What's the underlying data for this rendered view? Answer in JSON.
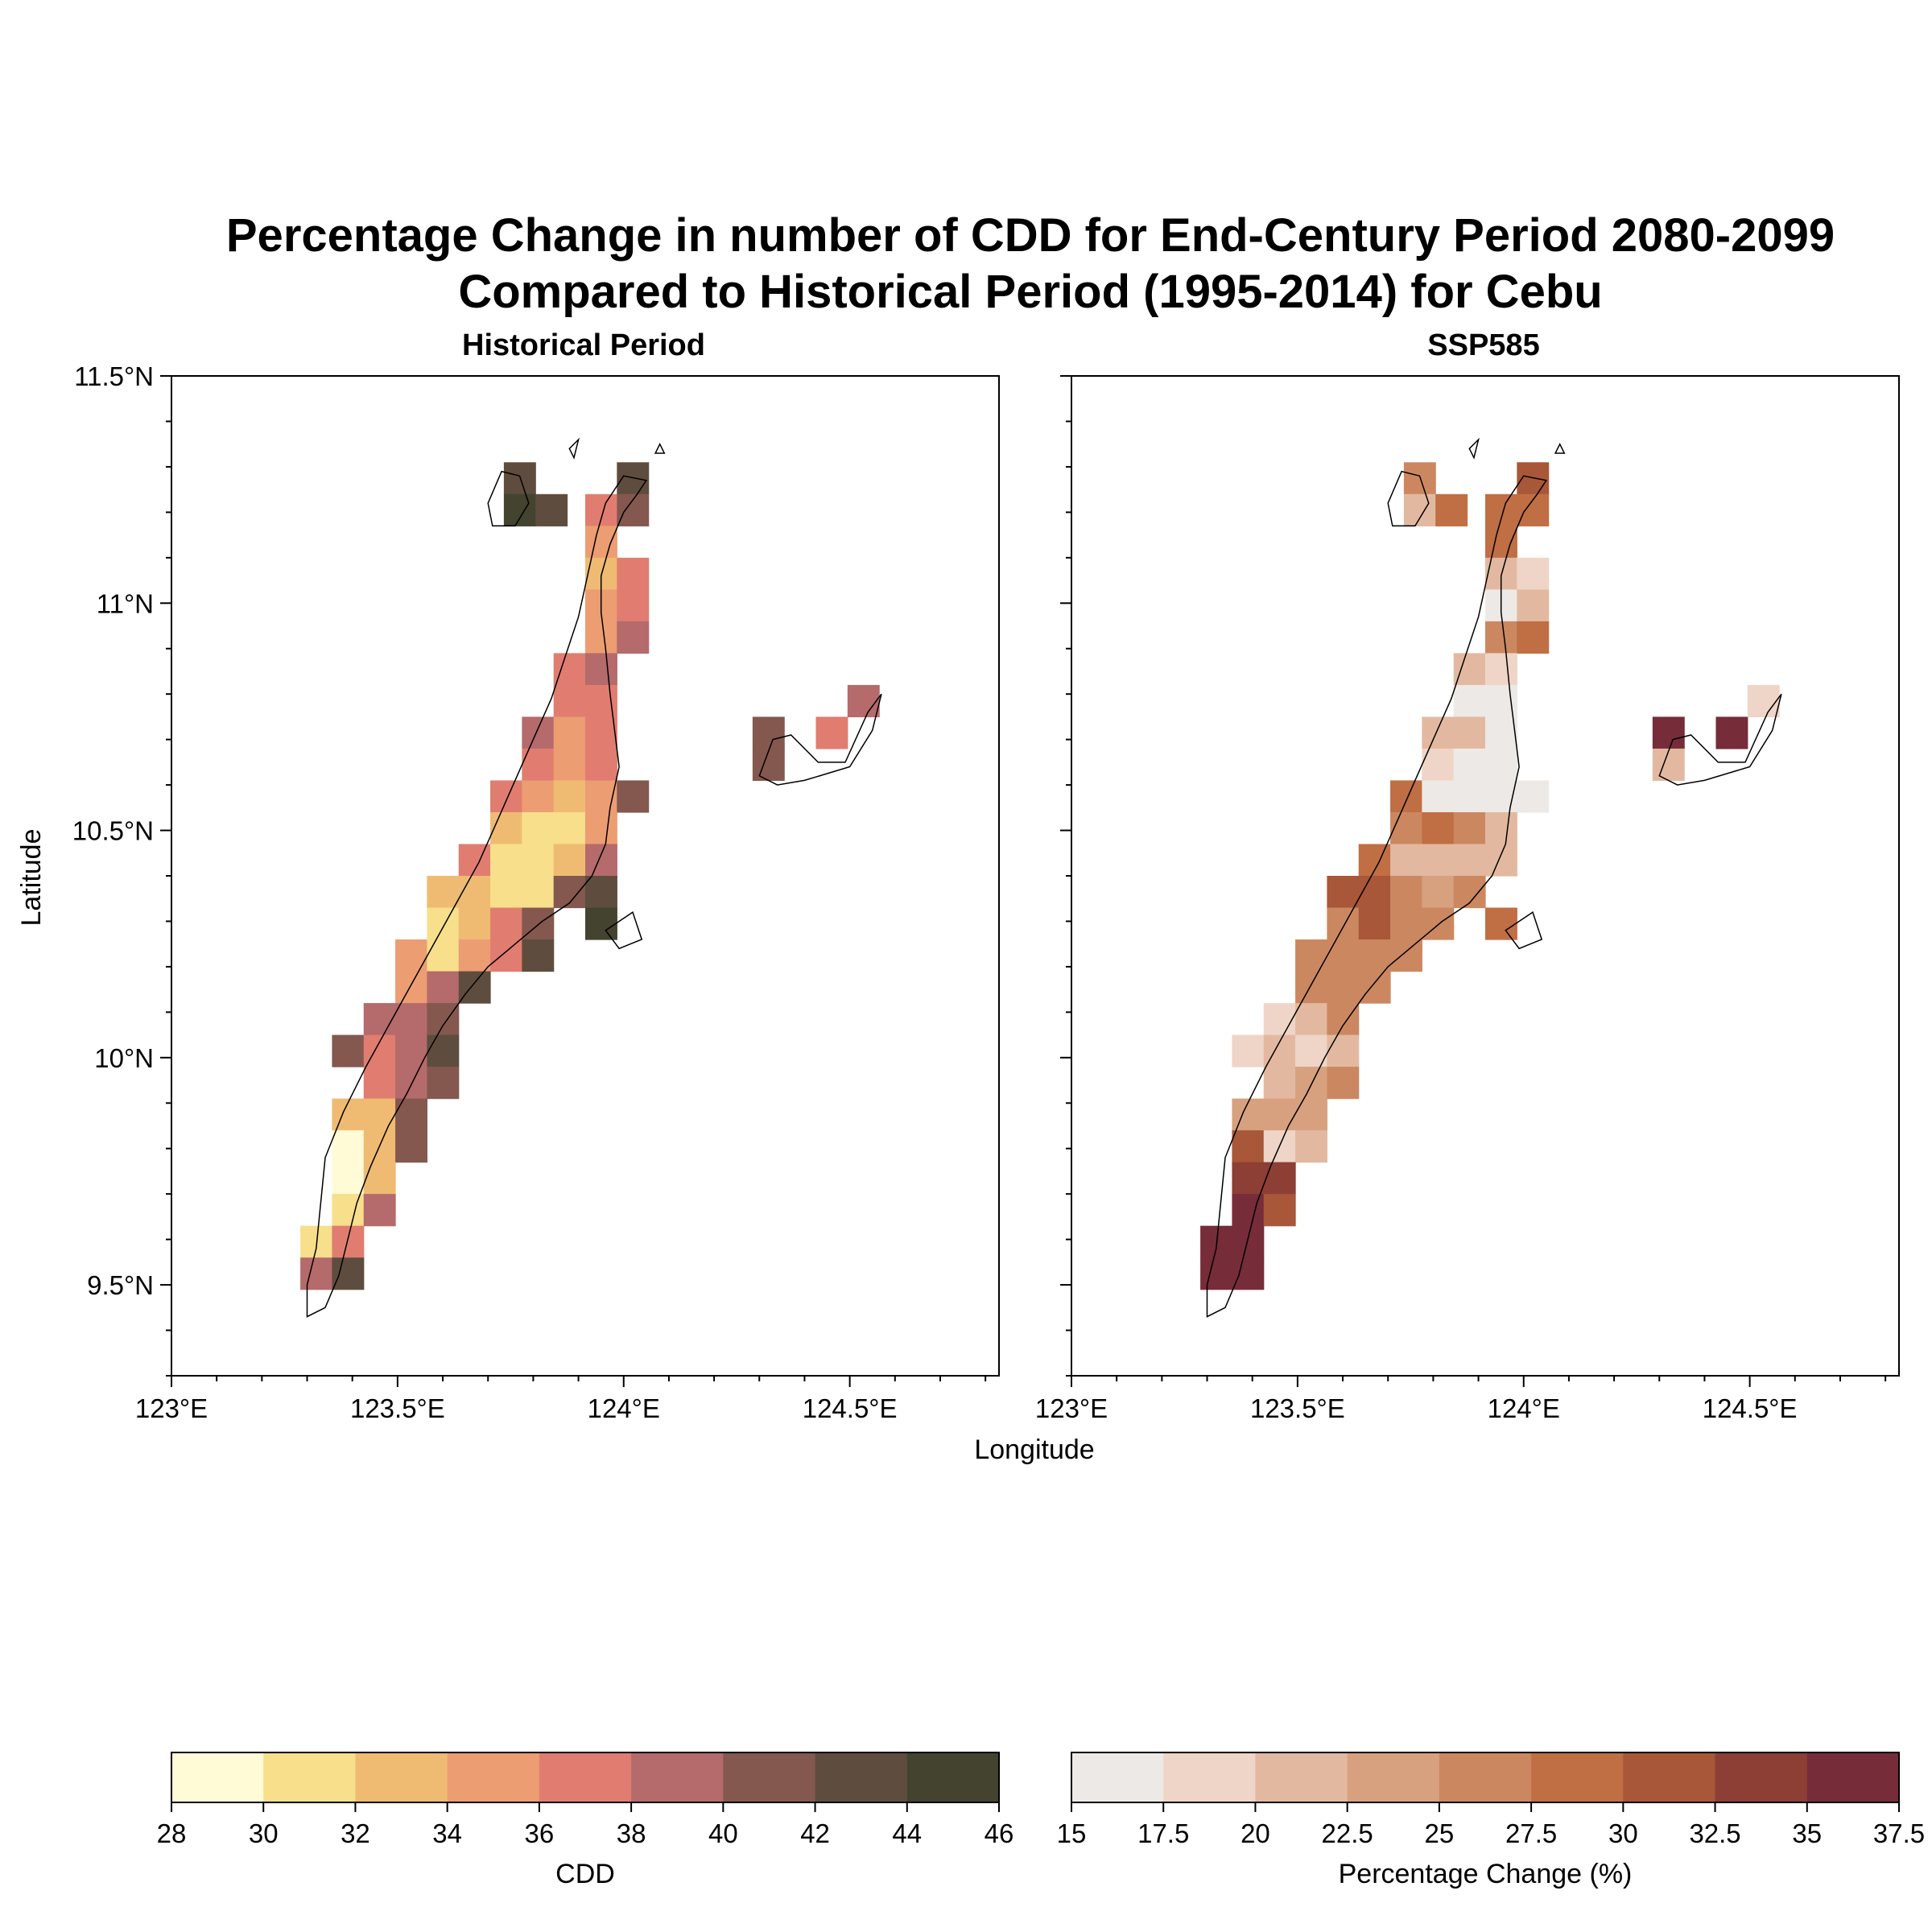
{
  "figure": {
    "title_line1": "Percentage Change in number of CDD for End-Century Period 2080-2099",
    "title_line2": "Compared to Historical Period (1995-2014) for Cebu"
  },
  "chart_data": [
    {
      "type": "heatmap",
      "title": "Historical Period",
      "xlabel": "Longitude",
      "ylabel": "Latitude",
      "xlim": [
        123.0,
        124.83
      ],
      "ylim": [
        9.3,
        11.5
      ],
      "x_ticks": [
        "123°E",
        "123.5°E",
        "124°E",
        "124.5°E"
      ],
      "x_tick_values": [
        123.0,
        123.5,
        124.0,
        124.5
      ],
      "y_ticks": [
        "9.5°N",
        "10°N",
        "10.5°N",
        "11°N",
        "11.5°N"
      ],
      "y_tick_values": [
        9.5,
        10.0,
        10.5,
        11.0,
        11.5
      ],
      "cell_size_deg": 0.07,
      "colorbar": {
        "label": "CDD",
        "tick_labels": [
          "28",
          "30",
          "32",
          "34",
          "36",
          "38",
          "40",
          "42",
          "44",
          "46"
        ],
        "colors": [
          "#fefbd6",
          "#f7df8b",
          "#efbb72",
          "#ec9d72",
          "#e07d70",
          "#b56a6b",
          "#84584f",
          "#5e4d3e",
          "#434330"
        ]
      },
      "cells": [
        [
          123.77,
          11.275,
          42
        ],
        [
          123.77,
          11.205,
          44
        ],
        [
          123.84,
          11.205,
          43
        ],
        [
          124.02,
          11.275,
          42
        ],
        [
          123.95,
          11.205,
          37
        ],
        [
          124.02,
          11.205,
          40
        ],
        [
          123.95,
          11.135,
          34
        ],
        [
          123.95,
          11.065,
          32
        ],
        [
          124.02,
          11.065,
          37
        ],
        [
          123.95,
          10.995,
          34
        ],
        [
          124.02,
          10.995,
          36
        ],
        [
          123.95,
          10.925,
          34
        ],
        [
          124.02,
          10.925,
          38
        ],
        [
          123.88,
          10.855,
          37
        ],
        [
          123.95,
          10.855,
          39
        ],
        [
          123.88,
          10.785,
          37
        ],
        [
          123.95,
          10.785,
          37
        ],
        [
          123.81,
          10.715,
          39
        ],
        [
          123.88,
          10.715,
          35
        ],
        [
          123.95,
          10.715,
          37
        ],
        [
          123.81,
          10.645,
          36
        ],
        [
          123.88,
          10.645,
          34
        ],
        [
          123.95,
          10.645,
          37
        ],
        [
          123.74,
          10.575,
          37
        ],
        [
          123.81,
          10.575,
          35
        ],
        [
          123.88,
          10.575,
          33
        ],
        [
          123.95,
          10.575,
          35
        ],
        [
          124.02,
          10.575,
          41
        ],
        [
          123.74,
          10.505,
          32
        ],
        [
          123.81,
          10.505,
          31
        ],
        [
          123.88,
          10.505,
          31
        ],
        [
          123.95,
          10.505,
          35
        ],
        [
          123.67,
          10.435,
          37
        ],
        [
          123.74,
          10.435,
          31
        ],
        [
          123.81,
          10.435,
          31
        ],
        [
          123.88,
          10.435,
          33
        ],
        [
          123.95,
          10.435,
          39
        ],
        [
          123.6,
          10.365,
          33
        ],
        [
          123.67,
          10.365,
          33
        ],
        [
          123.74,
          10.365,
          31
        ],
        [
          123.81,
          10.365,
          31
        ],
        [
          123.88,
          10.365,
          41
        ],
        [
          123.95,
          10.365,
          42
        ],
        [
          123.6,
          10.295,
          31
        ],
        [
          123.67,
          10.295,
          33
        ],
        [
          123.74,
          10.295,
          36
        ],
        [
          123.81,
          10.295,
          40
        ],
        [
          123.95,
          10.295,
          44
        ],
        [
          123.53,
          10.225,
          35
        ],
        [
          123.6,
          10.225,
          31
        ],
        [
          123.67,
          10.225,
          34
        ],
        [
          123.74,
          10.225,
          37
        ],
        [
          123.81,
          10.225,
          42
        ],
        [
          123.53,
          10.155,
          35
        ],
        [
          123.6,
          10.155,
          38
        ],
        [
          123.67,
          10.155,
          42
        ],
        [
          123.46,
          10.085,
          39
        ],
        [
          123.53,
          10.085,
          39
        ],
        [
          123.6,
          10.085,
          40
        ],
        [
          123.39,
          10.015,
          41
        ],
        [
          123.46,
          10.015,
          37
        ],
        [
          123.53,
          10.015,
          39
        ],
        [
          123.6,
          10.015,
          43
        ],
        [
          123.46,
          9.945,
          36
        ],
        [
          123.53,
          9.945,
          39
        ],
        [
          123.6,
          9.945,
          40
        ],
        [
          123.39,
          9.875,
          33
        ],
        [
          123.46,
          9.875,
          33
        ],
        [
          123.53,
          9.875,
          40
        ],
        [
          123.39,
          9.805,
          29
        ],
        [
          123.46,
          9.805,
          33
        ],
        [
          123.53,
          9.805,
          40
        ],
        [
          123.39,
          9.735,
          29
        ],
        [
          123.46,
          9.735,
          33
        ],
        [
          123.39,
          9.665,
          31
        ],
        [
          123.46,
          9.665,
          38
        ],
        [
          123.32,
          9.595,
          30
        ],
        [
          123.39,
          9.595,
          36
        ],
        [
          123.32,
          9.525,
          39
        ],
        [
          123.39,
          9.525,
          43
        ],
        [
          124.32,
          10.715,
          40
        ],
        [
          124.32,
          10.645,
          40
        ],
        [
          124.46,
          10.715,
          37
        ],
        [
          124.53,
          10.785,
          38
        ]
      ]
    },
    {
      "type": "heatmap",
      "title": "SSP585",
      "xlabel": "Longitude",
      "xlim": [
        123.0,
        124.83
      ],
      "ylim": [
        9.3,
        11.5
      ],
      "x_ticks": [
        "123°E",
        "123.5°E",
        "124°E",
        "124.5°E"
      ],
      "x_tick_values": [
        123.0,
        123.5,
        124.0,
        124.5
      ],
      "cell_size_deg": 0.07,
      "colorbar": {
        "label": "Percentage Change (%)",
        "tick_labels": [
          "15",
          "17.5",
          "20",
          "22.5",
          "25",
          "27.5",
          "30",
          "32.5",
          "35",
          "37.5"
        ],
        "colors": [
          "#ede9e6",
          "#eed5c7",
          "#e2b9a0",
          "#d7a17f",
          "#cb8860",
          "#c06e44",
          "#a85738",
          "#8d3f35",
          "#772c39"
        ]
      },
      "cells": [
        [
          123.77,
          11.275,
          25
        ],
        [
          123.77,
          11.205,
          22
        ],
        [
          123.84,
          11.205,
          28
        ],
        [
          124.02,
          11.275,
          30
        ],
        [
          123.95,
          11.205,
          28
        ],
        [
          124.02,
          11.205,
          28
        ],
        [
          123.95,
          11.135,
          28
        ],
        [
          123.95,
          11.065,
          21
        ],
        [
          124.02,
          11.065,
          18
        ],
        [
          123.95,
          10.995,
          16
        ],
        [
          124.02,
          10.995,
          21
        ],
        [
          123.95,
          10.925,
          27
        ],
        [
          124.02,
          10.925,
          28
        ],
        [
          123.88,
          10.855,
          21
        ],
        [
          123.95,
          10.855,
          19
        ],
        [
          123.88,
          10.785,
          17
        ],
        [
          123.95,
          10.785,
          16
        ],
        [
          123.81,
          10.715,
          22
        ],
        [
          123.88,
          10.715,
          21
        ],
        [
          123.95,
          10.715,
          16
        ],
        [
          123.81,
          10.645,
          19
        ],
        [
          123.88,
          10.645,
          16
        ],
        [
          123.95,
          10.645,
          16
        ],
        [
          123.74,
          10.575,
          28
        ],
        [
          123.81,
          10.575,
          16
        ],
        [
          123.88,
          10.575,
          16
        ],
        [
          123.95,
          10.575,
          16
        ],
        [
          124.02,
          10.575,
          16
        ],
        [
          123.74,
          10.505,
          26
        ],
        [
          123.81,
          10.505,
          28
        ],
        [
          123.88,
          10.505,
          25
        ],
        [
          123.95,
          10.505,
          21
        ],
        [
          123.67,
          10.435,
          28
        ],
        [
          123.74,
          10.435,
          22
        ],
        [
          123.81,
          10.435,
          21
        ],
        [
          123.88,
          10.435,
          21
        ],
        [
          123.95,
          10.435,
          21
        ],
        [
          123.6,
          10.365,
          30
        ],
        [
          123.67,
          10.365,
          30
        ],
        [
          123.74,
          10.365,
          26
        ],
        [
          123.81,
          10.365,
          24
        ],
        [
          123.88,
          10.365,
          27
        ],
        [
          123.6,
          10.295,
          26
        ],
        [
          123.67,
          10.295,
          32
        ],
        [
          123.74,
          10.295,
          27
        ],
        [
          123.81,
          10.295,
          27
        ],
        [
          123.95,
          10.295,
          28
        ],
        [
          123.53,
          10.225,
          25
        ],
        [
          123.6,
          10.225,
          26
        ],
        [
          123.67,
          10.225,
          26
        ],
        [
          123.74,
          10.225,
          26
        ],
        [
          123.53,
          10.155,
          26
        ],
        [
          123.6,
          10.155,
          26
        ],
        [
          123.67,
          10.155,
          26
        ],
        [
          123.46,
          10.085,
          19
        ],
        [
          123.53,
          10.085,
          21
        ],
        [
          123.6,
          10.085,
          26
        ],
        [
          123.39,
          10.015,
          19
        ],
        [
          123.46,
          10.015,
          21
        ],
        [
          123.53,
          10.015,
          19
        ],
        [
          123.6,
          10.015,
          21
        ],
        [
          123.46,
          9.945,
          22
        ],
        [
          123.53,
          9.945,
          24
        ],
        [
          123.6,
          9.945,
          26
        ],
        [
          123.39,
          9.875,
          24
        ],
        [
          123.46,
          9.875,
          23
        ],
        [
          123.53,
          9.875,
          24
        ],
        [
          123.39,
          9.805,
          31
        ],
        [
          123.46,
          9.805,
          19
        ],
        [
          123.53,
          9.805,
          21
        ],
        [
          123.39,
          9.735,
          33
        ],
        [
          123.46,
          9.735,
          33
        ],
        [
          123.39,
          9.665,
          35
        ],
        [
          123.46,
          9.665,
          31
        ],
        [
          123.32,
          9.595,
          36
        ],
        [
          123.39,
          9.595,
          36
        ],
        [
          123.32,
          9.525,
          36
        ],
        [
          123.39,
          9.525,
          36
        ],
        [
          124.32,
          10.715,
          36
        ],
        [
          124.32,
          10.645,
          21
        ],
        [
          124.46,
          10.715,
          36
        ],
        [
          124.53,
          10.785,
          19
        ]
      ]
    }
  ]
}
